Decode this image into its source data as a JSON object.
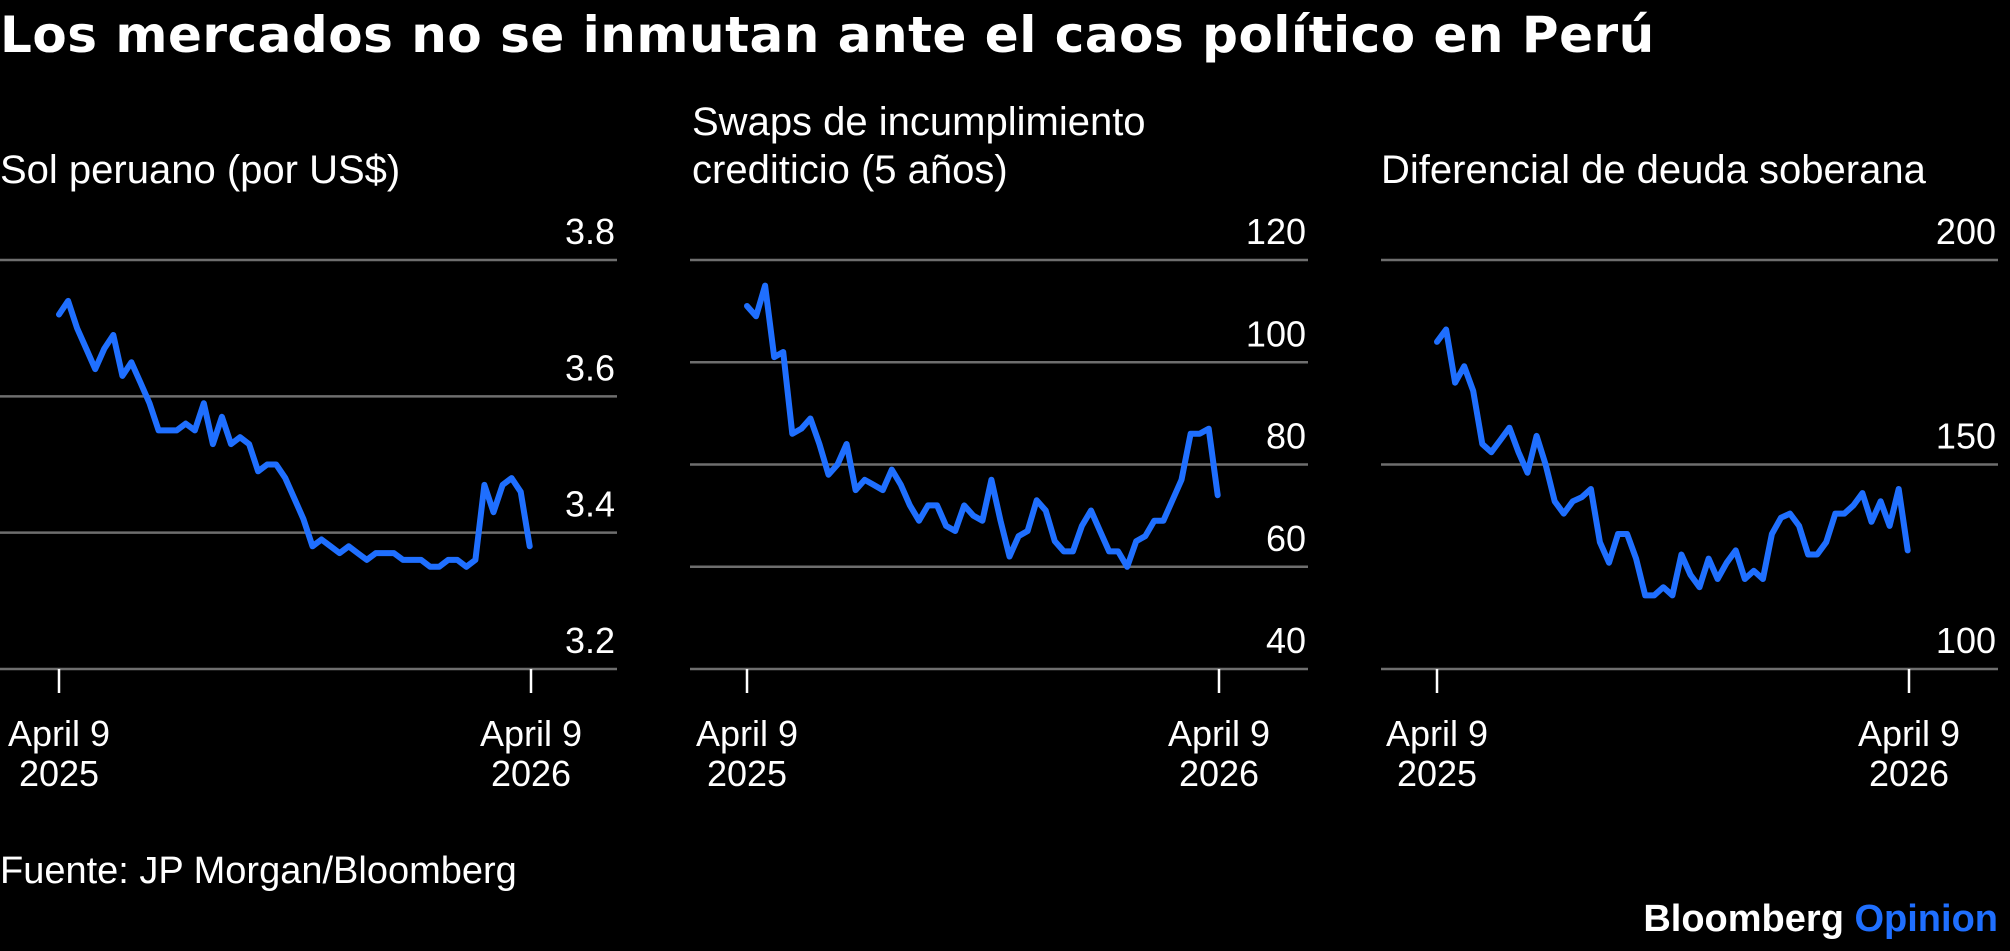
{
  "title": "Los mercados no se inmutan ante el caos político en Perú",
  "source": "Fuente: JP Morgan/Bloomberg",
  "brand": {
    "name": "Bloomberg",
    "suffix": "Opinion",
    "suffix_color": "#1F6FFF"
  },
  "colors": {
    "line": "#1F6FFF",
    "grid": "#6E6E6E",
    "background": "#000000",
    "text": "#FFFFFF"
  },
  "chart_data": [
    {
      "type": "line",
      "title": "Sol peruano (por US$)",
      "title_lines": [
        "Sol peruano (por US$)"
      ],
      "ylim": [
        3.2,
        3.8
      ],
      "yticks": [
        "3.8",
        "3.6",
        "3.4",
        "3.2"
      ],
      "ytick_values": [
        3.8,
        3.6,
        3.4,
        3.2
      ],
      "xticks": [
        {
          "date": "2025-04-09",
          "line1": "April 9",
          "line2": "2025"
        },
        {
          "date": "2026-04-09",
          "line1": "April 9",
          "line2": "2026"
        }
      ],
      "grid": true,
      "x": [
        "2025-04-09",
        "2025-04-16",
        "2025-04-23",
        "2025-04-30",
        "2025-05-07",
        "2025-05-14",
        "2025-05-21",
        "2025-05-28",
        "2025-06-04",
        "2025-06-11",
        "2025-06-18",
        "2025-06-25",
        "2025-07-02",
        "2025-07-09",
        "2025-07-16",
        "2025-07-23",
        "2025-07-30",
        "2025-08-06",
        "2025-08-13",
        "2025-08-20",
        "2025-08-27",
        "2025-09-03",
        "2025-09-10",
        "2025-09-17",
        "2025-09-24",
        "2025-10-01",
        "2025-10-08",
        "2025-10-15",
        "2025-10-22",
        "2025-10-29",
        "2025-11-05",
        "2025-11-12",
        "2025-11-19",
        "2025-11-26",
        "2025-12-03",
        "2025-12-10",
        "2025-12-17",
        "2025-12-24",
        "2025-12-31",
        "2026-01-07",
        "2026-01-14",
        "2026-01-21",
        "2026-01-28",
        "2026-02-04",
        "2026-02-11",
        "2026-02-18",
        "2026-02-25",
        "2026-03-04",
        "2026-03-11",
        "2026-03-18",
        "2026-03-25",
        "2026-04-01",
        "2026-04-08"
      ],
      "values": [
        3.72,
        3.74,
        3.7,
        3.67,
        3.64,
        3.67,
        3.69,
        3.63,
        3.65,
        3.62,
        3.59,
        3.55,
        3.55,
        3.55,
        3.56,
        3.55,
        3.59,
        3.53,
        3.57,
        3.53,
        3.54,
        3.53,
        3.49,
        3.5,
        3.5,
        3.48,
        3.45,
        3.42,
        3.38,
        3.39,
        3.38,
        3.37,
        3.38,
        3.37,
        3.36,
        3.37,
        3.37,
        3.37,
        3.36,
        3.36,
        3.36,
        3.35,
        3.35,
        3.36,
        3.36,
        3.35,
        3.36,
        3.47,
        3.43,
        3.47,
        3.48,
        3.46,
        3.38
      ]
    },
    {
      "type": "line",
      "title": "Swaps de incumplimiento crediticio (5 años)",
      "title_lines": [
        "Swaps de incumplimiento",
        "crediticio (5 años)"
      ],
      "ylim": [
        40,
        120
      ],
      "yticks": [
        "120",
        "100",
        "80",
        "60",
        "40"
      ],
      "ytick_values": [
        120,
        100,
        80,
        60,
        40
      ],
      "xticks": [
        {
          "date": "2025-04-09",
          "line1": "April 9",
          "line2": "2025"
        },
        {
          "date": "2026-04-09",
          "line1": "April 9",
          "line2": "2026"
        }
      ],
      "grid": true,
      "x": [
        "2025-04-09",
        "2025-04-16",
        "2025-04-23",
        "2025-04-30",
        "2025-05-07",
        "2025-05-14",
        "2025-05-21",
        "2025-05-28",
        "2025-06-04",
        "2025-06-11",
        "2025-06-18",
        "2025-06-25",
        "2025-07-02",
        "2025-07-09",
        "2025-07-16",
        "2025-07-23",
        "2025-07-30",
        "2025-08-06",
        "2025-08-13",
        "2025-08-20",
        "2025-08-27",
        "2025-09-03",
        "2025-09-10",
        "2025-09-17",
        "2025-09-24",
        "2025-10-01",
        "2025-10-08",
        "2025-10-15",
        "2025-10-22",
        "2025-10-29",
        "2025-11-05",
        "2025-11-12",
        "2025-11-19",
        "2025-11-26",
        "2025-12-03",
        "2025-12-10",
        "2025-12-17",
        "2025-12-24",
        "2025-12-31",
        "2026-01-07",
        "2026-01-14",
        "2026-01-21",
        "2026-01-28",
        "2026-02-04",
        "2026-02-11",
        "2026-02-18",
        "2026-02-25",
        "2026-03-04",
        "2026-03-11",
        "2026-03-18",
        "2026-03-25",
        "2026-04-01",
        "2026-04-08"
      ],
      "values": [
        111,
        109,
        115,
        101,
        102,
        86,
        87,
        89,
        84,
        78,
        80,
        84,
        75,
        77,
        76,
        75,
        79,
        76,
        72,
        69,
        72,
        72,
        68,
        67,
        72,
        70,
        69,
        77,
        69,
        62,
        66,
        67,
        73,
        71,
        65,
        63,
        63,
        68,
        71,
        67,
        63,
        63,
        60,
        65,
        66,
        69,
        69,
        73,
        77,
        86,
        86,
        87,
        74
      ]
    },
    {
      "type": "line",
      "title": "Diferencial de deuda soberana",
      "title_lines": [
        "Diferencial de deuda soberana"
      ],
      "ylim": [
        100,
        200
      ],
      "yticks": [
        "200",
        "150",
        "100"
      ],
      "ytick_values": [
        200,
        150,
        100
      ],
      "xticks": [
        {
          "date": "2025-04-09",
          "line1": "April 9",
          "line2": "2025"
        },
        {
          "date": "2026-04-09",
          "line1": "April 9",
          "line2": "2026"
        }
      ],
      "grid": true,
      "x": [
        "2025-04-09",
        "2025-04-16",
        "2025-04-23",
        "2025-04-30",
        "2025-05-07",
        "2025-05-14",
        "2025-05-21",
        "2025-05-28",
        "2025-06-04",
        "2025-06-11",
        "2025-06-18",
        "2025-06-25",
        "2025-07-02",
        "2025-07-09",
        "2025-07-16",
        "2025-07-23",
        "2025-07-30",
        "2025-08-06",
        "2025-08-13",
        "2025-08-20",
        "2025-08-27",
        "2025-09-03",
        "2025-09-10",
        "2025-09-17",
        "2025-09-24",
        "2025-10-01",
        "2025-10-08",
        "2025-10-15",
        "2025-10-22",
        "2025-10-29",
        "2025-11-05",
        "2025-11-12",
        "2025-11-19",
        "2025-11-26",
        "2025-12-03",
        "2025-12-10",
        "2025-12-17",
        "2025-12-24",
        "2025-12-31",
        "2026-01-07",
        "2026-01-14",
        "2026-01-21",
        "2026-01-28",
        "2026-02-04",
        "2026-02-11",
        "2026-02-18",
        "2026-02-25",
        "2026-03-04",
        "2026-03-11",
        "2026-03-18",
        "2026-03-25",
        "2026-04-01",
        "2026-04-08"
      ],
      "values": [
        180,
        183,
        170,
        174,
        168,
        155,
        153,
        156,
        159,
        153,
        148,
        157,
        150,
        141,
        138,
        141,
        142,
        144,
        131,
        126,
        133,
        133,
        127,
        118,
        118,
        120,
        118,
        128,
        123,
        120,
        127,
        122,
        126,
        129,
        122,
        124,
        122,
        133,
        137,
        138,
        135,
        128,
        128,
        131,
        138,
        138,
        140,
        143,
        136,
        141,
        135,
        144,
        129
      ]
    }
  ]
}
